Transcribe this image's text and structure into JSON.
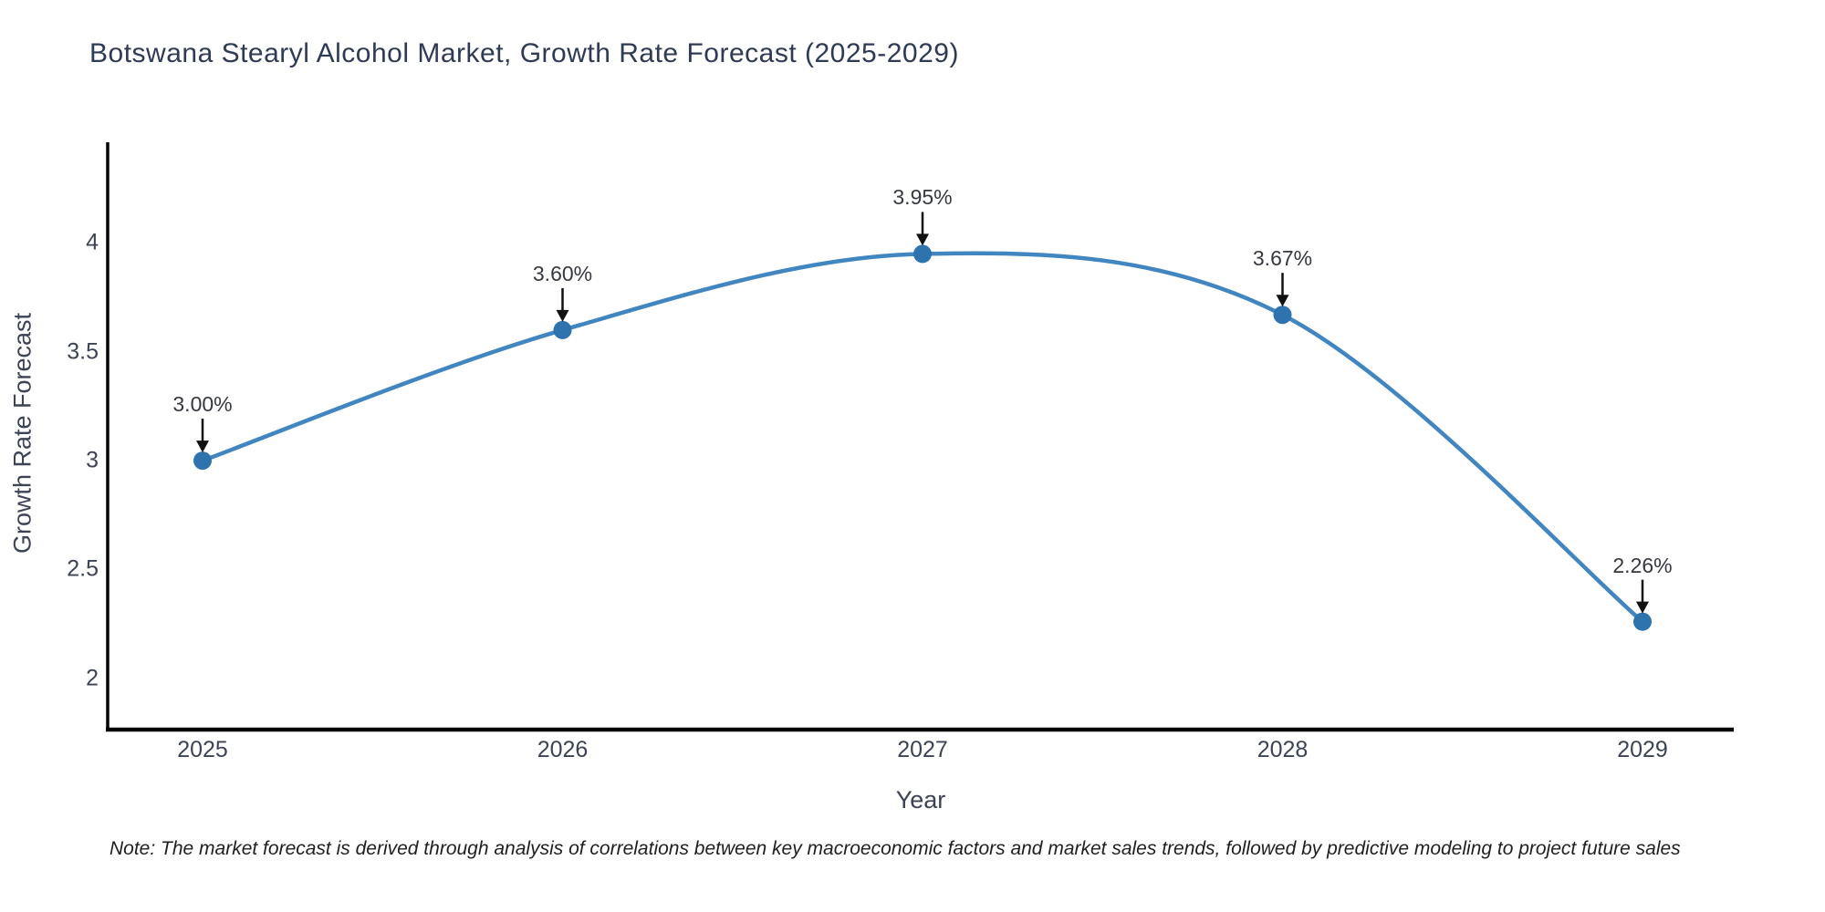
{
  "title": "Botswana Stearyl Alcohol Market, Growth Rate Forecast (2025-2029)",
  "note": "Note: The market forecast is derived through analysis of correlations between key macroeconomic factors and market sales trends, followed by predictive modeling to project future sales",
  "chart_data": {
    "type": "line",
    "title": "Botswana Stearyl Alcohol Market, Growth Rate Forecast (2025-2029)",
    "categories": [
      "2025",
      "2026",
      "2027",
      "2028",
      "2029"
    ],
    "series": [
      {
        "name": "Growth Rate Forecast",
        "values": [
          3.0,
          3.6,
          3.95,
          3.67,
          2.26
        ]
      }
    ],
    "point_labels": [
      "3.00%",
      "3.60%",
      "3.95%",
      "3.67%",
      "2.26%"
    ],
    "xlabel": "Year",
    "ylabel": "Growth Rate Forecast",
    "ylim": [
      1.764,
      4.463
    ],
    "yticks": [
      2,
      2.5,
      3,
      3.5,
      4
    ],
    "ytick_labels": [
      "2",
      "2.5",
      "3",
      "3.5",
      "4"
    ],
    "grid": false,
    "legend": "none",
    "smooth": true,
    "line_color": "#4186c0",
    "marker_color": "#2e73ae",
    "arrow_color": "#111111",
    "axis_color": "#000000"
  }
}
